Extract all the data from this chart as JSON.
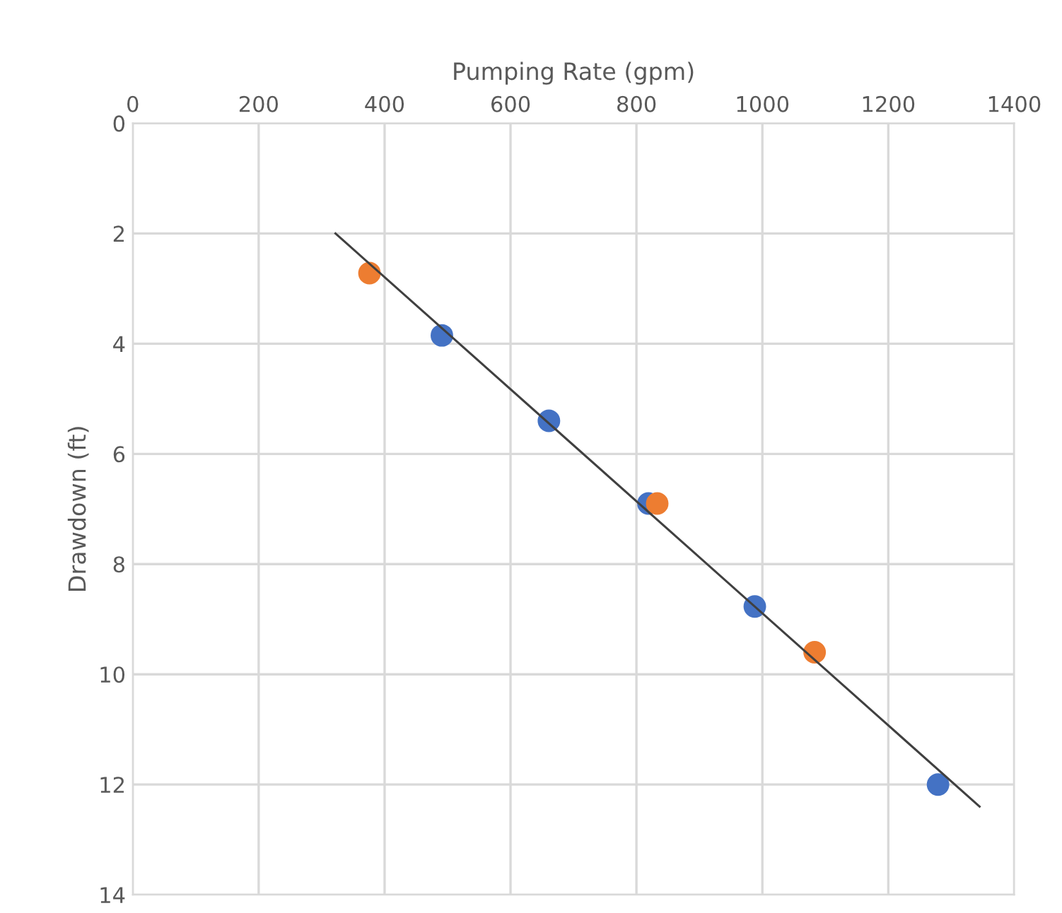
{
  "chart_data": {
    "type": "scatter",
    "xlabel": "Pumping Rate (gpm)",
    "ylabel": "Drawdown (ft)",
    "xlim": [
      0,
      1400
    ],
    "xticks": [
      0,
      200,
      400,
      600,
      800,
      1000,
      1200,
      1400
    ],
    "ylim": [
      14,
      0
    ],
    "yticks": [
      0,
      2,
      4,
      6,
      8,
      10,
      12,
      14
    ],
    "grid": true,
    "series": [
      {
        "color": "#4472c4",
        "marker": "circle",
        "x": [
          491,
          661,
          819,
          988,
          1279
        ],
        "values": [
          3.85,
          5.4,
          6.9,
          8.77,
          12.0
        ]
      },
      {
        "color": "#ed7d31",
        "marker": "circle",
        "x": [
          376,
          833,
          1083
        ],
        "values": [
          2.72,
          6.9,
          9.6
        ]
      },
      {
        "type": "line",
        "color": "#404040",
        "marker": "none",
        "x": [
          322,
          1345
        ],
        "values": [
          2.0,
          12.4
        ]
      }
    ]
  }
}
